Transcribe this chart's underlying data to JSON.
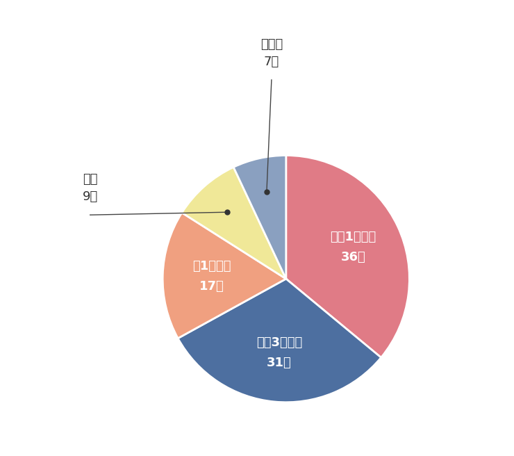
{
  "labels": [
    "週に1回程度",
    "週に3回程度",
    "月1回程度",
    "毎日",
    "その他"
  ],
  "values": [
    36,
    31,
    17,
    9,
    7
  ],
  "colors": [
    "#E07B86",
    "#4D6FA0",
    "#F0A080",
    "#F0E898",
    "#8AA0C0"
  ],
  "pct_labels": [
    "36％",
    "31％",
    "17％",
    "9％",
    "7％"
  ],
  "background_color": "#ffffff",
  "startangle": 90,
  "figsize": [
    7.4,
    6.56
  ],
  "outside_label_毎日": "毎日\n9％",
  "outside_label_その他": "その他\n7％"
}
